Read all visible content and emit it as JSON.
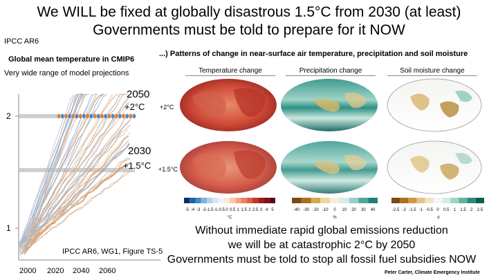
{
  "headline": {
    "line1": "We WILL be fixed at globally disastrous 1.5°C from 2030 (at least)",
    "line2": "Governments must be told to prepare for it NOW"
  },
  "left": {
    "source": "IPCC AR6",
    "title": "Global mean temperature in CMIP6",
    "subtitle": "Very wide range of model projections",
    "year_2050": "2050",
    "level_2050": "+2°C",
    "year_2030": "2030",
    "level_2030": "+1.5°C",
    "citation": "IPCC AR6, WG1, Figure TS-5",
    "y_ticks": [
      "2",
      "1"
    ],
    "x_ticks": [
      "2000",
      "2020",
      "2040",
      "2060"
    ]
  },
  "maps": {
    "heading": "...) Patterns of change in near-surface air temperature, precipitation and soil moisture",
    "columns": [
      "Temperature change",
      "Precipitation change",
      "Soil moisture change"
    ],
    "rows": [
      "+2°C",
      "+1.5°C"
    ],
    "temp_scale": {
      "labels": [
        "-5",
        "-4",
        "-3",
        "-2",
        "-1.5",
        "-1",
        "-0.5",
        "0",
        "0.5",
        "1",
        "1.5",
        "2",
        "2.5",
        "3",
        "4",
        "5"
      ],
      "unit": "°C"
    },
    "precip_scale": {
      "labels": [
        "-40",
        "-30",
        "-20",
        "-10",
        "0",
        "10",
        "20",
        "30",
        "40"
      ],
      "unit": "%"
    },
    "soil_scale": {
      "labels": [
        "-2.5",
        "-2",
        "-1.5",
        "-1",
        "-0.5",
        "0",
        "0.5",
        "1",
        "1.5",
        "2",
        "2.5"
      ],
      "unit": "σ"
    }
  },
  "bottom": {
    "line1": "Without immediate rapid global emissions reduction",
    "line2": "we will be at catastrophic 2°C by 2050",
    "line3": "Governments must be told to stop all fossil fuel subsidies NOW"
  },
  "credit": "Peter Carter,  Climate Emergency Institute"
}
